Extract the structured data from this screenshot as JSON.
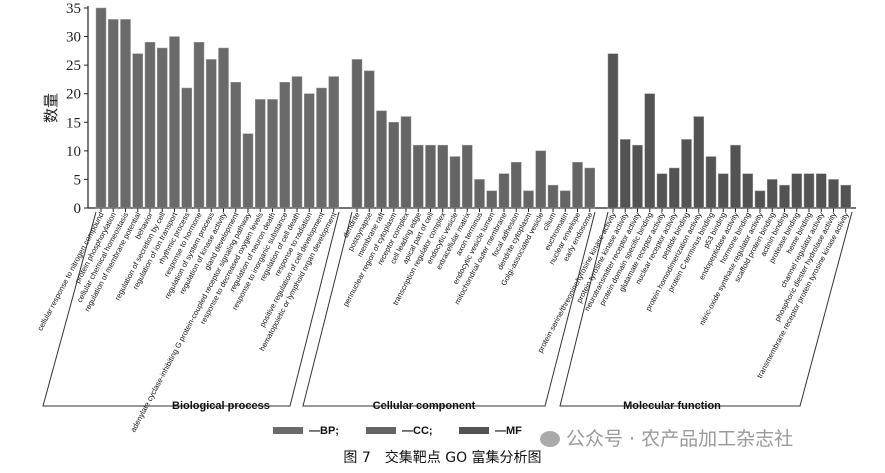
{
  "chart_data": {
    "type": "bar",
    "ylabel": "数量",
    "ylim": [
      0,
      35
    ],
    "yticks": [
      0,
      5,
      10,
      15,
      20,
      25,
      30,
      35
    ],
    "grid": false,
    "legend_position": "bottom",
    "series": [
      {
        "name": "BP",
        "legend_label": "—BP;",
        "group_label": "Biological process",
        "color": "#6a6a6a",
        "categories": [
          "cellular response to nitrogen compound",
          "protein phosphorylation",
          "cellular chemical homeostasis",
          "regulation of membrane potential",
          "behavior",
          "regulation of secretion by cell",
          "regulation of ion transport",
          "rhythmic process",
          "response to hormone",
          "regulation of system process",
          "regulation of kinase activity",
          "gland development",
          "adenylate cyclase-inhibiting G protein-coupled receptor signaling pathway",
          "response to decreased oxygen levels",
          "regulation of neuron death",
          "response to inorganic substance",
          "regulation of cell death",
          "response to radiation",
          "positive regulation of cell development",
          "hematopoietic or lymphoid organ development"
        ],
        "values": [
          35,
          33,
          33,
          27,
          29,
          28,
          30,
          21,
          29,
          26,
          28,
          22,
          13,
          19,
          19,
          22,
          23,
          20,
          21,
          23
        ]
      },
      {
        "name": "CC",
        "legend_label": "—CC;",
        "group_label": "Cellular component",
        "color": "#656565",
        "categories": [
          "dendrite",
          "postsynapse",
          "membrane raft",
          "perinuclear region of cytoplasm",
          "receptor complex",
          "cell leading edge",
          "apical part of cell",
          "transcription regulator complex",
          "endocytic vesicle",
          "extracellular matrix",
          "axon terminus",
          "endocytic vesicle lumen",
          "mitochondrial outer membrane",
          "focal adhesion",
          "dendrite cytoplasm",
          "Golgi-associated vesicle",
          "cilium",
          "euchromatin",
          "nuclear envelope",
          "early endosome"
        ],
        "values": [
          26,
          24,
          17,
          15,
          16,
          11,
          11,
          11,
          9,
          11,
          5,
          3,
          6,
          8,
          3,
          10,
          4,
          3,
          8,
          7
        ]
      },
      {
        "name": "MF",
        "legend_label": "—MF",
        "group_label": "Molecular function",
        "color": "#535353",
        "categories": [
          "protein serine/threonine/tyrosine kinase activity",
          "protein tyrosine kinase activity",
          "neurotransmitter receptor activity",
          "protein domain specific binding",
          "glutamate receptor activity",
          "nuclear receptor activity",
          "peptide binding",
          "protein homodimerization activity",
          "protein C-terminus binding",
          "p53 binding",
          "endopeptidase activity",
          "hormone binding",
          "nitric-oxide synthase regulator activity",
          "scaffold protein binding",
          "actinin binding",
          "protease binding",
          "heme binding",
          "channel regulator activity",
          "phosphoric diester hydrolase activity",
          "transmembrane receptor protein tyrosine kinase activity"
        ],
        "values": [
          27,
          12,
          11,
          20,
          6,
          7,
          12,
          16,
          9,
          6,
          11,
          6,
          3,
          5,
          4,
          6,
          6,
          6,
          5,
          4
        ]
      }
    ]
  },
  "caption": "图 7　交集靶点 GO 富集分析图",
  "watermark": "公众号 · 农产品加工杂志社"
}
